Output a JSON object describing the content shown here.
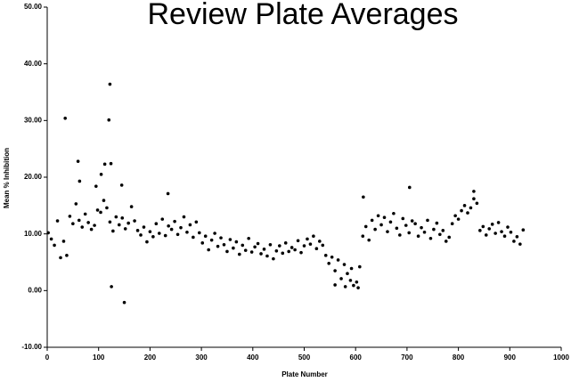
{
  "chart_data": {
    "type": "scatter",
    "title": "Review Plate Averages",
    "x_label": "Plate Number",
    "y_label": "Mean % Inhibition",
    "xlim": [
      0,
      1000
    ],
    "ylim": [
      -10,
      50
    ],
    "xticks": [
      0,
      100,
      200,
      300,
      400,
      500,
      600,
      700,
      800,
      900,
      1000
    ],
    "yticks": [
      {
        "value": -10,
        "label": "-10.00"
      },
      {
        "value": 0,
        "label": "0.00"
      },
      {
        "value": 10,
        "label": "10.00"
      },
      {
        "value": 20,
        "label": "20.00"
      },
      {
        "value": 30,
        "label": "30.00"
      },
      {
        "value": 40,
        "label": "40.00"
      },
      {
        "value": 50,
        "label": "50.00"
      }
    ],
    "color": "#000000",
    "x": [
      2,
      8,
      14,
      20,
      26,
      32,
      38,
      44,
      50,
      56,
      62,
      68,
      74,
      80,
      86,
      92,
      98,
      104,
      110,
      116,
      122,
      128,
      134,
      140,
      146,
      152,
      158,
      164,
      170,
      176,
      182,
      188,
      194,
      200,
      206,
      212,
      218,
      224,
      230,
      236,
      242,
      248,
      254,
      260,
      266,
      272,
      278,
      284,
      290,
      296,
      302,
      308,
      314,
      320,
      326,
      332,
      338,
      344,
      350,
      356,
      362,
      368,
      374,
      380,
      386,
      392,
      398,
      404,
      410,
      416,
      422,
      428,
      434,
      440,
      446,
      452,
      458,
      464,
      470,
      476,
      482,
      488,
      494,
      500,
      506,
      512,
      518,
      524,
      530,
      536,
      542,
      548,
      554,
      560,
      566,
      572,
      578,
      584,
      590,
      596,
      602,
      608,
      614,
      620,
      626,
      632,
      638,
      644,
      650,
      656,
      662,
      668,
      674,
      680,
      686,
      692,
      698,
      704,
      710,
      716,
      722,
      728,
      734,
      740,
      746,
      752,
      758,
      764,
      770,
      776,
      782,
      788,
      794,
      800,
      806,
      812,
      818,
      824,
      830,
      836,
      842,
      848,
      854,
      860,
      866,
      872,
      878,
      884,
      890,
      896,
      902,
      908,
      914,
      920,
      926,
      35,
      60,
      63,
      95,
      105,
      112,
      120,
      122,
      124,
      125,
      145,
      150,
      235,
      615,
      705,
      830,
      580,
      605,
      592,
      560
    ],
    "values": [
      10.2,
      9.1,
      8.0,
      12.3,
      5.8,
      8.7,
      6.2,
      13.1,
      11.8,
      15.3,
      12.4,
      11.2,
      13.5,
      12.0,
      10.8,
      11.5,
      14.2,
      13.8,
      15.9,
      14.6,
      12.1,
      10.5,
      13.0,
      11.6,
      12.8,
      10.9,
      11.9,
      14.8,
      12.3,
      10.6,
      9.8,
      11.2,
      8.6,
      10.4,
      9.5,
      11.8,
      10.1,
      12.6,
      9.7,
      11.4,
      10.8,
      12.2,
      9.9,
      11.1,
      13.0,
      10.3,
      11.6,
      9.4,
      12.1,
      10.2,
      8.4,
      9.6,
      7.2,
      8.9,
      10.1,
      7.8,
      9.3,
      8.1,
      6.9,
      9.0,
      7.5,
      8.6,
      6.4,
      8.0,
      7.1,
      9.2,
      6.8,
      7.7,
      8.3,
      6.5,
      7.3,
      6.1,
      8.1,
      5.6,
      7.0,
      7.9,
      6.6,
      8.4,
      6.9,
      7.6,
      7.2,
      8.8,
      6.7,
      7.9,
      9.1,
      8.2,
      9.6,
      7.4,
      8.7,
      8.0,
      6.2,
      4.8,
      5.9,
      3.5,
      5.4,
      2.1,
      4.6,
      3.0,
      1.8,
      0.9,
      1.5,
      4.2,
      9.6,
      11.3,
      8.9,
      12.4,
      10.8,
      13.2,
      11.6,
      12.9,
      10.4,
      12.1,
      13.6,
      11.0,
      9.8,
      12.7,
      11.5,
      10.2,
      12.3,
      11.8,
      9.6,
      11.1,
      10.3,
      12.4,
      9.2,
      10.8,
      11.9,
      9.9,
      10.6,
      8.7,
      9.4,
      11.8,
      13.2,
      12.6,
      14.1,
      15.0,
      13.7,
      14.6,
      16.2,
      15.4,
      10.6,
      11.3,
      9.8,
      10.9,
      11.7,
      10.1,
      12.0,
      10.4,
      9.6,
      11.2,
      10.3,
      8.7,
      9.5,
      8.2,
      10.7,
      30.4,
      22.8,
      19.3,
      18.4,
      20.5,
      22.3,
      30.1,
      36.4,
      22.4,
      0.7,
      18.6,
      -2.1,
      17.1,
      16.5,
      18.2,
      17.5,
      0.7,
      0.5,
      3.9,
      1.0
    ]
  }
}
